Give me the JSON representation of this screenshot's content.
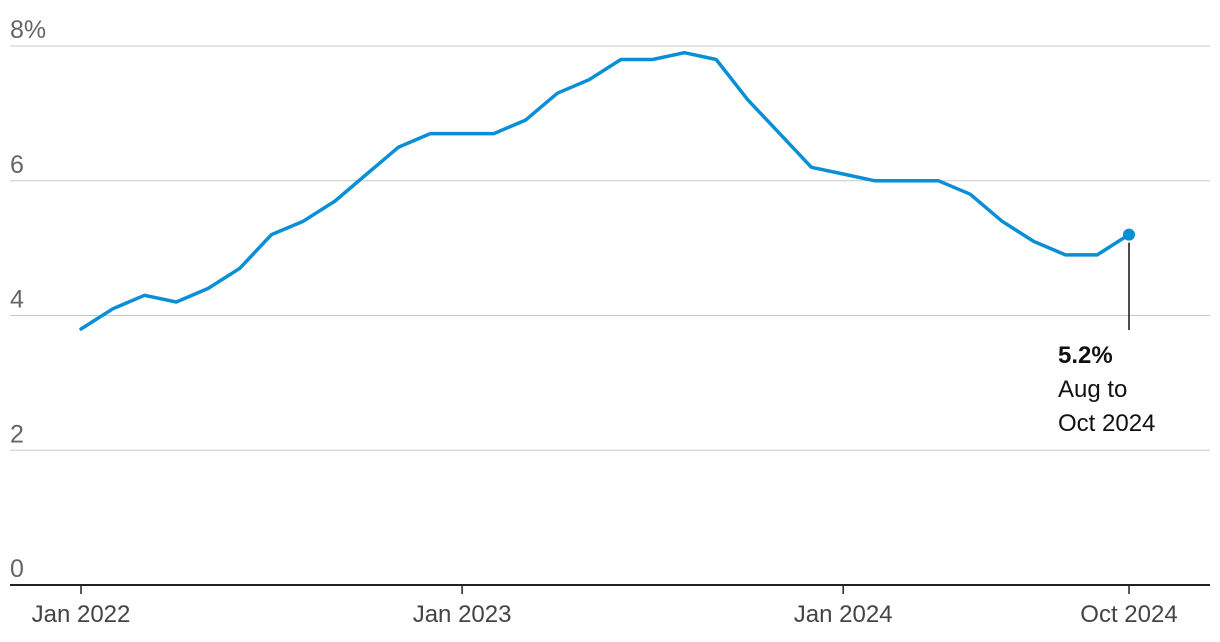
{
  "chart_data": {
    "type": "line",
    "title": "",
    "xlabel": "",
    "ylabel": "",
    "ylim": [
      0,
      8
    ],
    "yticks": [
      {
        "value": 0,
        "label": "0"
      },
      {
        "value": 2,
        "label": "2"
      },
      {
        "value": 4,
        "label": "4"
      },
      {
        "value": 6,
        "label": "6"
      },
      {
        "value": 8,
        "label": "8%"
      }
    ],
    "xticks": [
      {
        "value": "2022-01",
        "label": "Jan 2022"
      },
      {
        "value": "2023-01",
        "label": "Jan 2023"
      },
      {
        "value": "2024-01",
        "label": "Jan 2024"
      },
      {
        "value": "2024-10",
        "label": "Oct 2024"
      }
    ],
    "grid": true,
    "colors": {
      "series": "#0a8fd6",
      "grid": "#c8c8c8",
      "axis": "#222222"
    },
    "series": [
      {
        "x": [
          "2022-01",
          "2022-02",
          "2022-03",
          "2022-04",
          "2022-05",
          "2022-06",
          "2022-07",
          "2022-08",
          "2022-09",
          "2022-10",
          "2022-11",
          "2022-12",
          "2023-01",
          "2023-02",
          "2023-03",
          "2023-04",
          "2023-05",
          "2023-06",
          "2023-07",
          "2023-08",
          "2023-09",
          "2023-10",
          "2023-11",
          "2023-12",
          "2024-01",
          "2024-02",
          "2024-03",
          "2024-04",
          "2024-05",
          "2024-06",
          "2024-07",
          "2024-08",
          "2024-09",
          "2024-10"
        ],
        "values": [
          3.8,
          4.1,
          4.3,
          4.2,
          4.4,
          4.7,
          5.2,
          5.4,
          5.7,
          6.1,
          6.5,
          6.7,
          6.7,
          6.7,
          6.9,
          7.3,
          7.5,
          7.8,
          7.8,
          7.9,
          7.8,
          7.2,
          6.7,
          6.2,
          6.1,
          6.0,
          6.0,
          6.0,
          5.8,
          5.4,
          5.1,
          4.9,
          4.9,
          5.2
        ]
      }
    ],
    "annotations": [
      {
        "x": "2024-10",
        "value": 5.2,
        "value_label": "5.2%",
        "lines": [
          "Aug to",
          "Oct 2024"
        ]
      }
    ]
  }
}
